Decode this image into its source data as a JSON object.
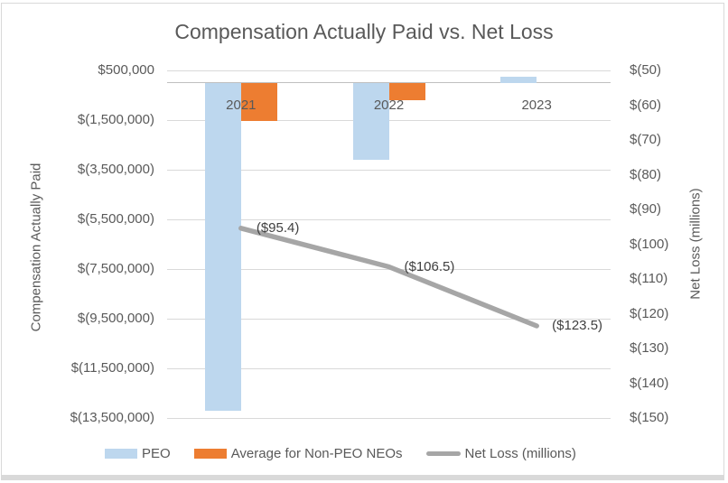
{
  "chart_data": {
    "type": "bar",
    "subtype": "combo-bar-line",
    "title": "Compensation Actually Paid vs. Net Loss",
    "categories": [
      "2021",
      "2022",
      "2023"
    ],
    "series": [
      {
        "name": "PEO",
        "type": "bar",
        "axis": "left",
        "color": "#BDD7EE",
        "values": [
          -13200000,
          -3100000,
          250000
        ]
      },
      {
        "name": "Average for Non-PEO NEOs",
        "type": "bar",
        "axis": "left",
        "color": "#ED7D31",
        "values": [
          -1550000,
          -700000,
          0
        ]
      },
      {
        "name": "Net Loss (millions)",
        "type": "line",
        "axis": "right",
        "color": "#A6A6A6",
        "values": [
          -95.4,
          -106.5,
          -123.5
        ],
        "point_labels": [
          "($95.4)",
          "($106.5)",
          "($123.5)"
        ]
      }
    ],
    "left_axis": {
      "title": "Compensation Actually Paid",
      "max": 500000,
      "min": -13500000,
      "tick_step": 2000000,
      "tick_labels": [
        "$500,000",
        "$(1,500,000)",
        "$(3,500,000)",
        "$(5,500,000)",
        "$(7,500,000)",
        "$(9,500,000)",
        "$(11,500,000)",
        "$(13,500,000)"
      ]
    },
    "right_axis": {
      "title": "Net Loss (millions)",
      "max": -50,
      "min": -150,
      "tick_step": 10,
      "tick_labels": [
        "$(50)",
        "$(60)",
        "$(70)",
        "$(80)",
        "$(90)",
        "$(100)",
        "$(110)",
        "$(120)",
        "$(130)",
        "$(140)",
        "$(150)"
      ]
    },
    "legend_position": "bottom",
    "grid": true
  },
  "colors": {
    "peo_bar": "#BDD7EE",
    "non_peo_bar": "#ED7D31",
    "net_loss_line": "#A6A6A6",
    "gridline": "#D9D9D9",
    "zero_axis_line": "#BFBFBF",
    "axis_text": "#595959",
    "title_text": "#595959",
    "data_label_text": "#404040",
    "border": "#D9D9D9"
  }
}
